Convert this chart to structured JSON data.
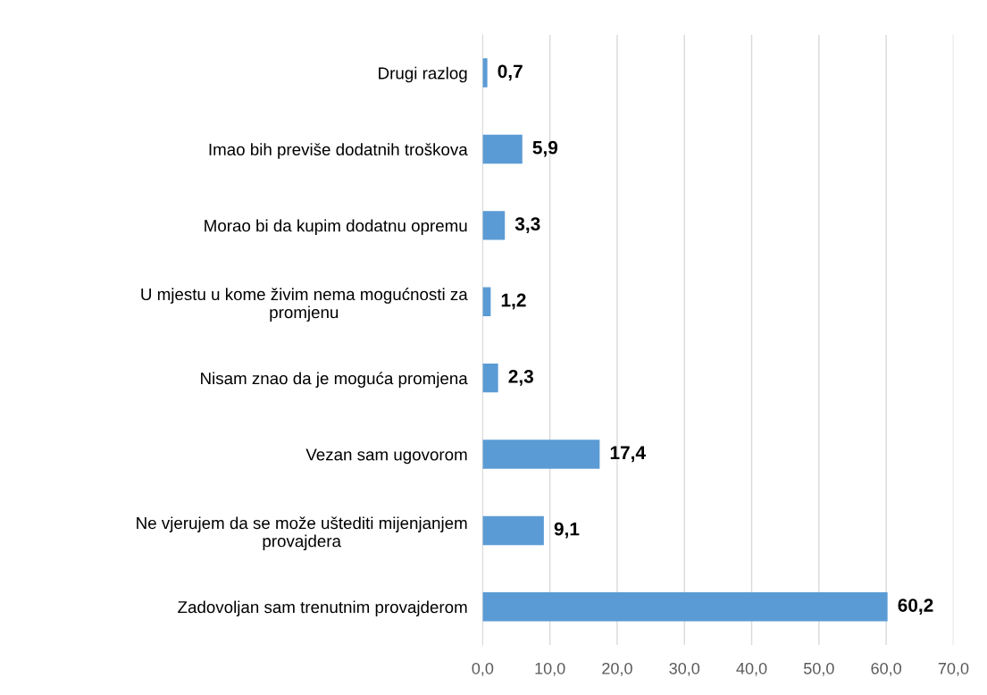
{
  "chart_data": {
    "type": "bar",
    "orientation": "horizontal",
    "categories": [
      "Drugi razlog",
      "Imao bih previše dodatnih troškova",
      "Morao bi da kupim dodatnu opremu",
      "U mjestu u kome živim nema mogućnosti za\npromjenu",
      "Nisam znao da je moguća promjena",
      "Vezan sam ugovorom",
      "Ne vjerujem da se može uštediti mijenjanjem\nprovajdera",
      "Zadovoljan sam trenutnim provajderom"
    ],
    "values": [
      0.7,
      5.9,
      3.3,
      1.2,
      2.3,
      17.4,
      9.1,
      60.2
    ],
    "value_labels": [
      "0,7",
      "5,9",
      "3,3",
      "1,2",
      "2,3",
      "17,4",
      "9,1",
      "60,2"
    ],
    "color": "#5b9bd5",
    "xlim": [
      0,
      70
    ],
    "xticks": [
      {
        "value": 0,
        "label": "0,0"
      },
      {
        "value": 10,
        "label": "10,0"
      },
      {
        "value": 20,
        "label": "20,0"
      },
      {
        "value": 30,
        "label": "30,0"
      },
      {
        "value": 40,
        "label": "40,0"
      },
      {
        "value": 50,
        "label": "50,0"
      },
      {
        "value": 60,
        "label": "60,0"
      },
      {
        "value": 70,
        "label": "70,0"
      }
    ],
    "grid": "x",
    "legend": false
  }
}
